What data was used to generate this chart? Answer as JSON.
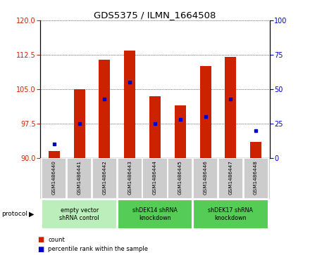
{
  "title": "GDS5375 / ILMN_1664508",
  "samples": [
    "GSM1486440",
    "GSM1486441",
    "GSM1486442",
    "GSM1486443",
    "GSM1486444",
    "GSM1486445",
    "GSM1486446",
    "GSM1486447",
    "GSM1486448"
  ],
  "count_values": [
    91.5,
    105.0,
    111.5,
    113.5,
    103.5,
    101.5,
    110.0,
    112.0,
    93.5
  ],
  "percentile_values": [
    10,
    25,
    43,
    55,
    25,
    28,
    30,
    43,
    20
  ],
  "ylim_left": [
    90,
    120
  ],
  "ylim_right": [
    0,
    100
  ],
  "yticks_left": [
    90,
    97.5,
    105,
    112.5,
    120
  ],
  "yticks_right": [
    0,
    25,
    50,
    75,
    100
  ],
  "bar_color": "#cc2200",
  "dot_color": "#0000cc",
  "bar_width": 0.45,
  "groups": [
    {
      "label": "empty vector\nshRNA control",
      "start": 0,
      "end": 2,
      "color": "#bbeebb"
    },
    {
      "label": "shDEK14 shRNA\nknockdown",
      "start": 3,
      "end": 5,
      "color": "#55cc55"
    },
    {
      "label": "shDEK17 shRNA\nknockdown",
      "start": 6,
      "end": 8,
      "color": "#55cc55"
    }
  ],
  "legend_count_label": "count",
  "legend_percentile_label": "percentile rank within the sample",
  "protocol_label": "protocol",
  "background_color": "#ffffff",
  "label_bg_color": "#cccccc",
  "label_sep_color": "#ffffff"
}
